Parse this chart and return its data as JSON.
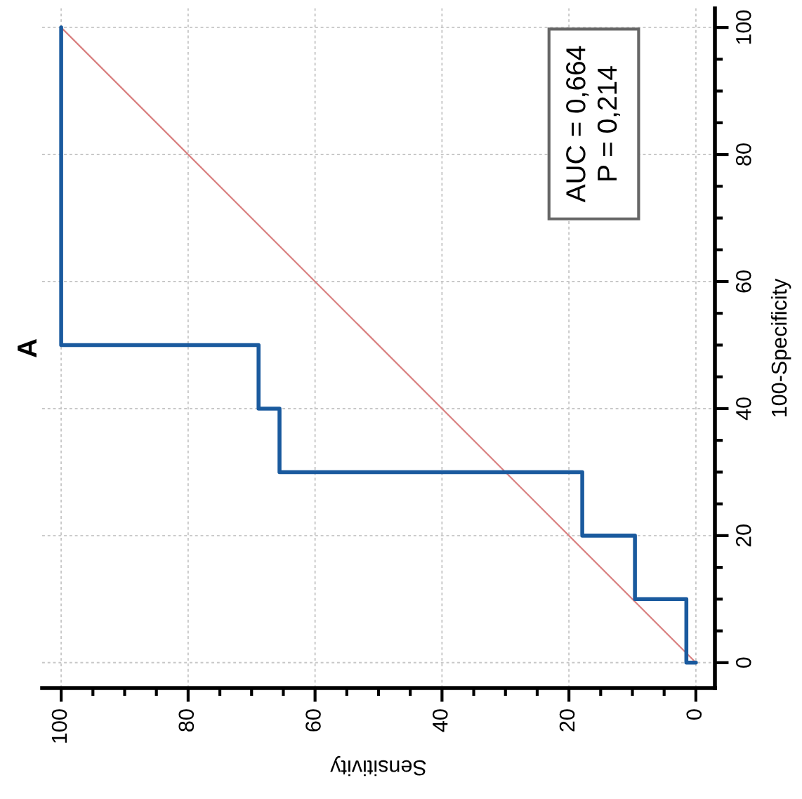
{
  "chart_data": {
    "type": "line",
    "title": "A",
    "xlabel": "Sensitivity",
    "ylabel": "100-Specificity",
    "annotations": [
      "AUC = 0,664\nP = 0,214"
    ],
    "xlim": [
      103,
      -3
    ],
    "ylim": [
      -4,
      103
    ],
    "xticks": [
      0,
      {
        "value": 5,
        "label": null
      },
      {
        "value": 10,
        "label": null
      },
      {
        "value": 15,
        "label": null
      },
      20,
      {
        "value": 25,
        "label": null
      },
      {
        "value": 30,
        "label": null
      },
      {
        "value": 35,
        "label": null
      },
      40,
      {
        "value": 45,
        "label": null
      },
      {
        "value": 50,
        "label": null
      },
      {
        "value": 55,
        "label": null
      },
      60,
      {
        "value": 65,
        "label": null
      },
      {
        "value": 70,
        "label": null
      },
      {
        "value": 75,
        "label": null
      },
      80,
      {
        "value": 85,
        "label": null
      },
      {
        "value": 90,
        "label": null
      },
      {
        "value": 95,
        "label": null
      },
      100
    ],
    "yticks": [
      0,
      {
        "value": 5,
        "label": null
      },
      {
        "value": 10,
        "label": null
      },
      {
        "value": 15,
        "label": null
      },
      20,
      {
        "value": 25,
        "label": null
      },
      {
        "value": 30,
        "label": null
      },
      {
        "value": 35,
        "label": null
      },
      40,
      {
        "value": 45,
        "label": null
      },
      {
        "value": 50,
        "label": null
      },
      {
        "value": 55,
        "label": null
      },
      60,
      {
        "value": 65,
        "label": null
      },
      {
        "value": 70,
        "label": null
      },
      {
        "value": 75,
        "label": null
      },
      80,
      {
        "value": 85,
        "label": null
      },
      {
        "value": 90,
        "label": null
      },
      {
        "value": 95,
        "label": null
      },
      100
    ],
    "grid": true,
    "marker": "none",
    "line_style": "solid",
    "series": [
      {
        "color": "#d98080",
        "x": [
          0,
          100
        ],
        "values": [
          0,
          100
        ]
      },
      {
        "color": "#1a5a9e",
        "x": [
          0,
          1.5,
          1.5,
          9.6,
          9.6,
          17.9,
          17.9,
          65.6,
          65.6,
          68.9,
          68.9,
          100,
          100
        ],
        "values": [
          0,
          0,
          10,
          10,
          20,
          20,
          30,
          30,
          40,
          40,
          50,
          50,
          100
        ]
      }
    ]
  }
}
